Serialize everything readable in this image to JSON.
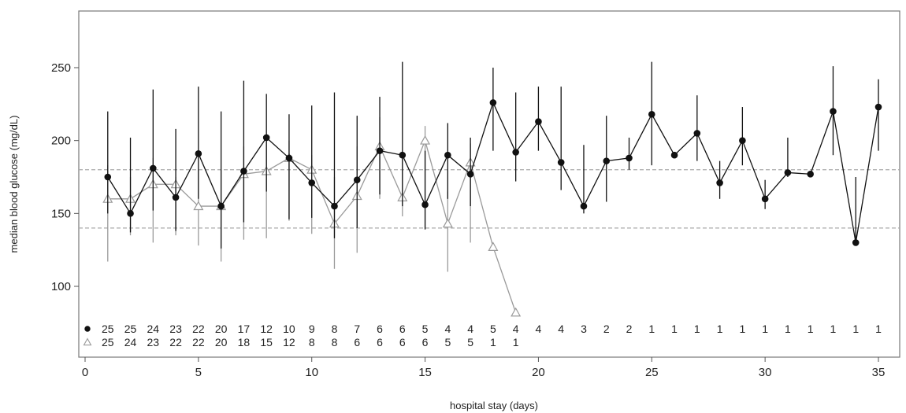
{
  "chart_data": {
    "type": "line",
    "xlabel": "hospital stay (days)",
    "ylabel": "median blood glucose (mg/dL)",
    "xlim": [
      0,
      36
    ],
    "ylim": [
      50,
      285
    ],
    "xticks": [
      0,
      5,
      10,
      15,
      20,
      25,
      30,
      35
    ],
    "yticks": [
      100,
      150,
      200,
      250
    ],
    "reference_lines": [
      140,
      180
    ],
    "grid": false,
    "legend": "none",
    "colors": {
      "series1": "#111111",
      "series2": "#9a9a9a",
      "reference": "#aaaaaa",
      "frame": "#777777"
    },
    "series": [
      {
        "marker": "filled-circle",
        "x": [
          1,
          2,
          3,
          4,
          5,
          6,
          7,
          8,
          9,
          10,
          11,
          12,
          13,
          14,
          15,
          16,
          17,
          18,
          19,
          20,
          21,
          22,
          23,
          24,
          25,
          26,
          27,
          28,
          29,
          30,
          31,
          32,
          33,
          34,
          35
        ],
        "y": [
          175,
          150,
          181,
          161,
          191,
          155,
          179,
          202,
          188,
          171,
          155,
          173,
          193,
          190,
          156,
          190,
          177,
          226,
          192,
          213,
          185,
          155,
          186,
          188,
          218,
          190,
          205,
          171,
          200,
          160,
          178,
          177,
          220,
          130,
          223
        ],
        "upper": [
          220,
          202,
          235,
          208,
          237,
          220,
          241,
          232,
          218,
          224,
          233,
          217,
          230,
          254,
          193,
          212,
          202,
          250,
          233,
          237,
          237,
          197,
          217,
          202,
          254,
          190,
          231,
          186,
          223,
          173,
          202,
          177,
          251,
          175,
          242
        ],
        "lower": [
          150,
          137,
          152,
          138,
          160,
          126,
          144,
          165,
          146,
          147,
          133,
          140,
          163,
          155,
          139,
          160,
          155,
          193,
          172,
          193,
          166,
          150,
          158,
          180,
          183,
          190,
          186,
          160,
          183,
          153,
          175,
          177,
          190,
          129,
          193
        ],
        "counts": [
          "25",
          "25",
          "24",
          "23",
          "22",
          "20",
          "17",
          "12",
          "10",
          "9",
          "8",
          "7",
          "6",
          "6",
          "5",
          "4",
          "4",
          "5",
          "4",
          "4",
          "4",
          "3",
          "2",
          "2",
          "1",
          "1",
          "1",
          "1",
          "1",
          "1",
          "1",
          "1",
          "1",
          "1",
          "1"
        ]
      },
      {
        "marker": "open-triangle",
        "x": [
          1,
          2,
          3,
          4,
          5,
          6,
          7,
          8,
          9,
          10,
          11,
          12,
          13,
          14,
          15,
          16,
          17,
          18,
          19
        ],
        "y": [
          160,
          160,
          170,
          170,
          155,
          155,
          177,
          179,
          188,
          180,
          143,
          162,
          196,
          161,
          200,
          143,
          185,
          127,
          82
        ],
        "upper": [
          183,
          175,
          188,
          175,
          180,
          180,
          196,
          200,
          200,
          190,
          175,
          196,
          216,
          190,
          210,
          165,
          198,
          127,
          82
        ],
        "lower": [
          117,
          135,
          130,
          135,
          128,
          117,
          132,
          133,
          145,
          136,
          112,
          123,
          160,
          148,
          140,
          110,
          130,
          127,
          82
        ],
        "counts": [
          "25",
          "24",
          "23",
          "22",
          "22",
          "20",
          "18",
          "15",
          "12",
          "8",
          "8",
          "6",
          "6",
          "6",
          "6",
          "5",
          "5",
          "1",
          "1"
        ]
      }
    ]
  }
}
